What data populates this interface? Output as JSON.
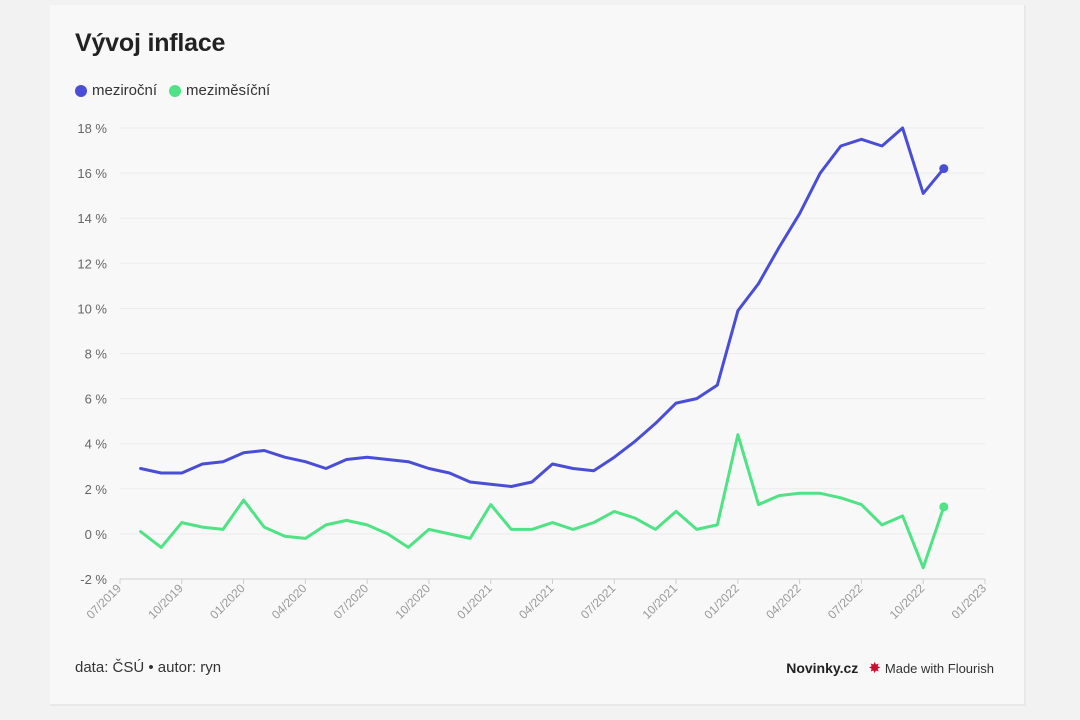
{
  "title": "Vývoj inflace",
  "footer": {
    "source": "data: ČSÚ • autor: ryn",
    "brand": "Novinky.cz",
    "credit": "Made with Flourish"
  },
  "chart_data": {
    "type": "line",
    "title": "Vývoj inflace",
    "xlabel": "",
    "ylabel": "",
    "ylim": [
      -2,
      18
    ],
    "xlim": [
      "2019-07",
      "2023-01"
    ],
    "grid": true,
    "legend_position": "top-left",
    "y_ticks": [
      -2,
      0,
      2,
      4,
      6,
      8,
      10,
      12,
      14,
      16,
      18
    ],
    "y_tick_labels": [
      "-2 %",
      "0 %",
      "2 %",
      "4 %",
      "6 %",
      "8 %",
      "10 %",
      "12 %",
      "14 %",
      "16 %",
      "18 %"
    ],
    "x_ticks": [
      "2019-07",
      "2019-10",
      "2020-01",
      "2020-04",
      "2020-07",
      "2020-10",
      "2021-01",
      "2021-04",
      "2021-07",
      "2021-10",
      "2022-01",
      "2022-04",
      "2022-07",
      "2022-10",
      "2023-01"
    ],
    "x_tick_labels": [
      "07/2019",
      "10/2019",
      "01/2020",
      "04/2020",
      "07/2020",
      "10/2020",
      "01/2021",
      "04/2021",
      "07/2021",
      "10/2021",
      "01/2022",
      "04/2022",
      "07/2022",
      "10/2022",
      "01/2023"
    ],
    "x": [
      "2019-08",
      "2019-09",
      "2019-10",
      "2019-11",
      "2019-12",
      "2020-01",
      "2020-02",
      "2020-03",
      "2020-04",
      "2020-05",
      "2020-06",
      "2020-07",
      "2020-08",
      "2020-09",
      "2020-10",
      "2020-11",
      "2020-12",
      "2021-01",
      "2021-02",
      "2021-03",
      "2021-04",
      "2021-05",
      "2021-06",
      "2021-07",
      "2021-08",
      "2021-09",
      "2021-10",
      "2021-11",
      "2021-12",
      "2022-01",
      "2022-02",
      "2022-03",
      "2022-04",
      "2022-05",
      "2022-06",
      "2022-07",
      "2022-08",
      "2022-09",
      "2022-10",
      "2022-11"
    ],
    "series": [
      {
        "name": "meziroční",
        "color": "#4a4ed6",
        "values": [
          2.9,
          2.7,
          2.7,
          3.1,
          3.2,
          3.6,
          3.7,
          3.4,
          3.2,
          2.9,
          3.3,
          3.4,
          3.3,
          3.2,
          2.9,
          2.7,
          2.3,
          2.2,
          2.1,
          2.3,
          3.1,
          2.9,
          2.8,
          3.4,
          4.1,
          4.9,
          5.8,
          6.0,
          6.6,
          9.9,
          11.1,
          12.7,
          14.2,
          16.0,
          17.2,
          17.5,
          17.2,
          18.0,
          15.1,
          16.2
        ]
      },
      {
        "name": "meziměsíční",
        "color": "#4fe386",
        "values": [
          0.1,
          -0.6,
          0.5,
          0.3,
          0.2,
          1.5,
          0.3,
          -0.1,
          -0.2,
          0.4,
          0.6,
          0.4,
          0.0,
          -0.6,
          0.2,
          0.0,
          -0.2,
          1.3,
          0.2,
          0.2,
          0.5,
          0.2,
          0.5,
          1.0,
          0.7,
          0.2,
          1.0,
          0.2,
          0.4,
          4.4,
          1.3,
          1.7,
          1.8,
          1.8,
          1.6,
          1.3,
          0.4,
          0.8,
          -1.5,
          1.2
        ]
      }
    ]
  }
}
